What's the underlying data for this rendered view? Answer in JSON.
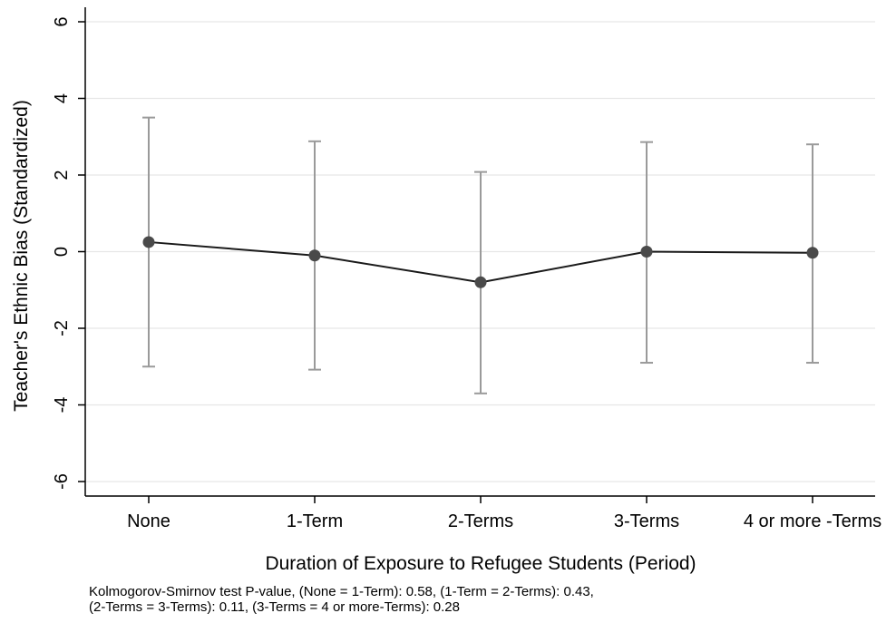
{
  "chart_data": {
    "type": "line",
    "title": "",
    "xlabel": "Duration of Exposure to Refugee Students (Period)",
    "ylabel": "Teacher's Ethnic Bias (Standardized)",
    "categories": [
      "None",
      "1-Term",
      "2-Terms",
      "3-Terms",
      "4 or more -Terms"
    ],
    "series": [
      {
        "values": [
          0.25,
          -0.1,
          -0.8,
          0.0,
          -0.03
        ],
        "lower": [
          -3.0,
          -3.08,
          -3.7,
          -2.9,
          -2.9
        ],
        "upper": [
          3.5,
          2.88,
          2.08,
          2.86,
          2.8
        ]
      }
    ],
    "ylim": [
      -6,
      6
    ],
    "yticks": [
      {
        "value": 6,
        "label": "6"
      },
      {
        "value": 4,
        "label": "4"
      },
      {
        "value": 2,
        "label": "2"
      },
      {
        "value": 0,
        "label": "0"
      },
      {
        "value": -2,
        "label": "-2"
      },
      {
        "value": -4,
        "label": "-4"
      },
      {
        "value": -6,
        "label": "-6"
      }
    ],
    "grid": true,
    "colors": {
      "line": "#1a1a1a",
      "marker": "#4a4a4a",
      "errorbar": "#9a9a9a",
      "grid": "#e6e6e6"
    }
  },
  "note": {
    "line1": "Kolmogorov-Smirnov test P-value, (None = 1-Term):  0.58, (1-Term = 2-Terms):  0.43,",
    "line2": "(2-Terms = 3-Terms):  0.11, (3-Terms = 4 or more-Terms):  0.28"
  }
}
